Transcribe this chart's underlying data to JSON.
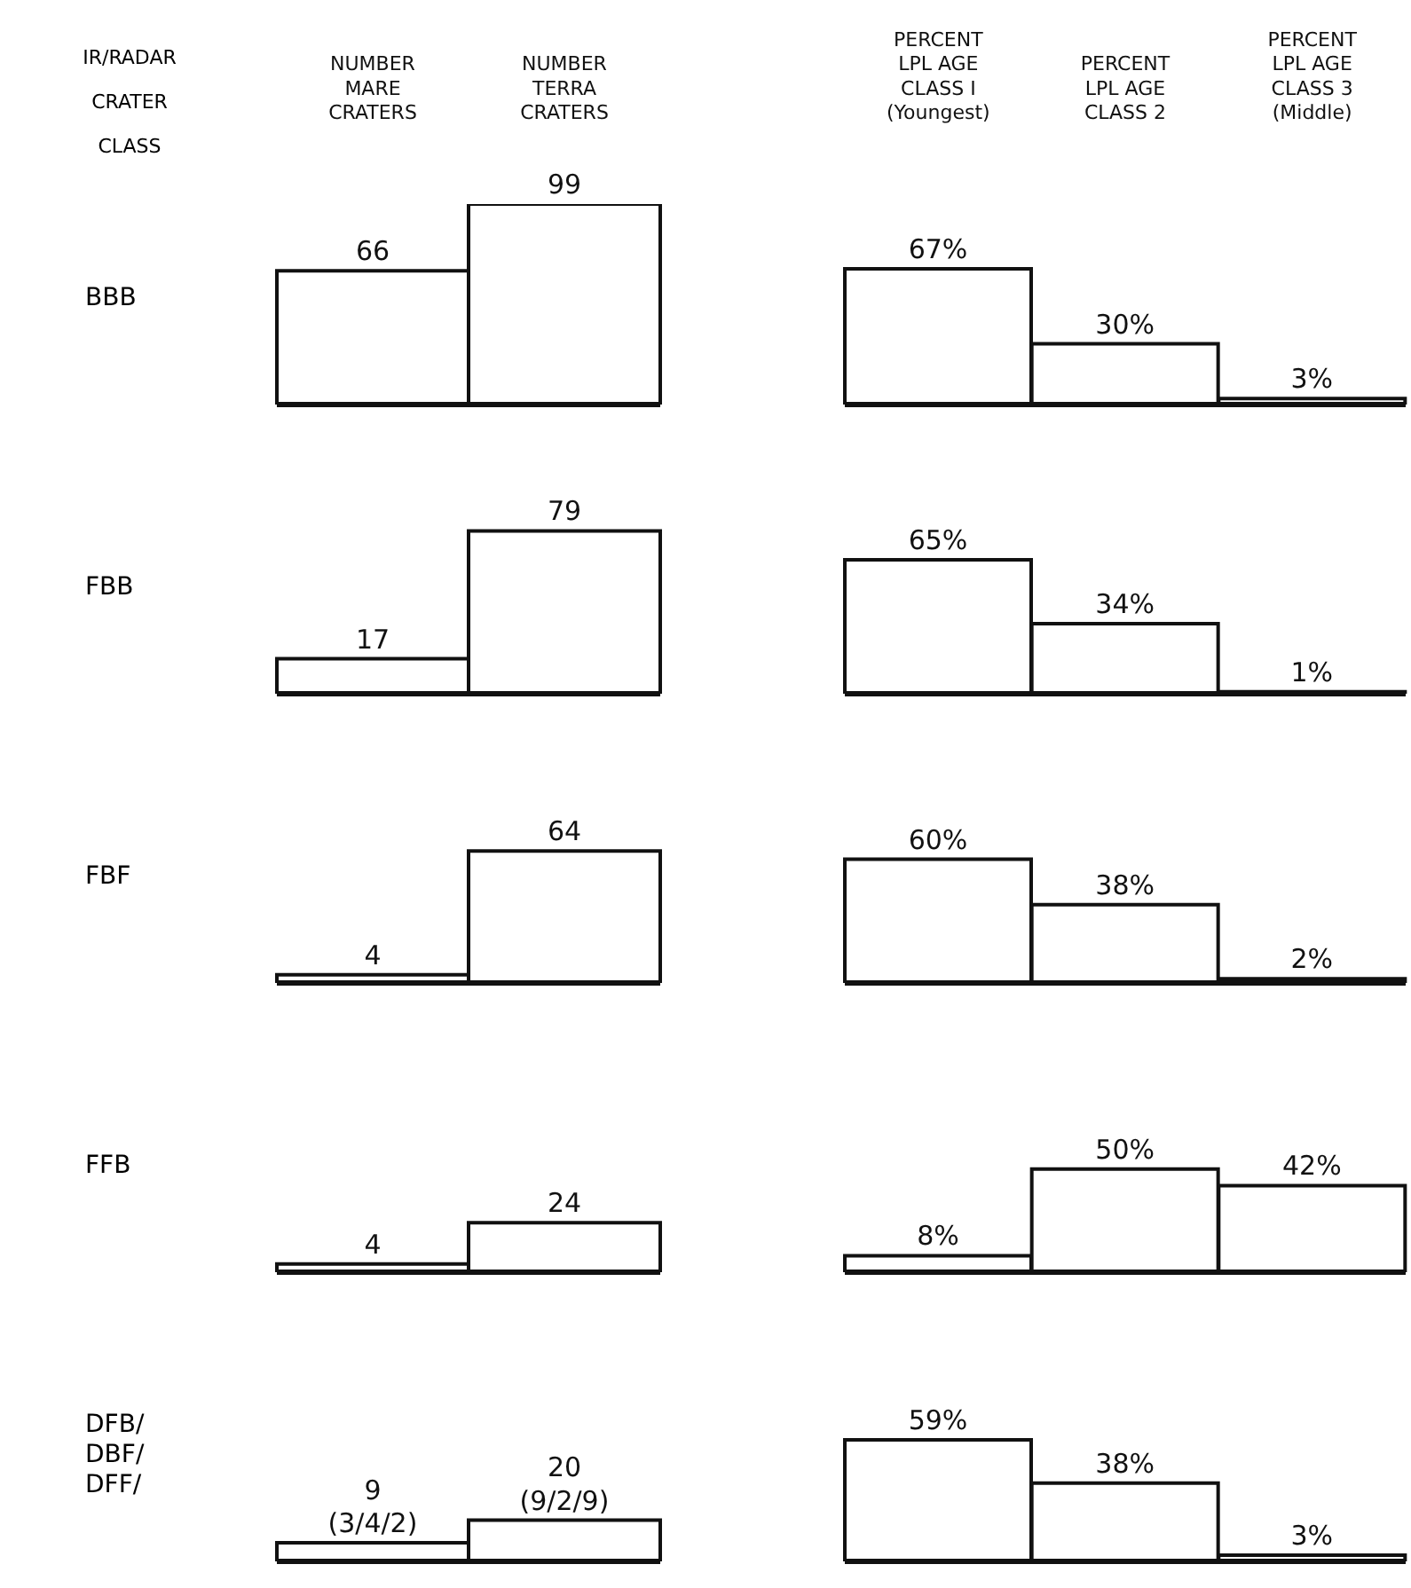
{
  "chart_data": [
    {
      "type": "bar",
      "annotations": [
        "IR/RADAR\nCRATER\nCLASS"
      ],
      "ylabel": "BBB",
      "categories": [
        "NUMBER\nMARE\nCRATERS",
        "NUMBER\nTERRA\nCRATERS"
      ],
      "values": [
        66,
        99
      ],
      "color": "#ffffff",
      "data_labels": true
    },
    {
      "type": "bar",
      "categories": [
        "PERCENT\nLPL AGE\nCLASS I\n(Youngest)",
        "PERCENT\nLPL AGE\nCLASS 2",
        "PERCENT\nLPL AGE\nCLASS 3\n(Middle)"
      ],
      "values": [
        67,
        30,
        3
      ],
      "value_labels": [
        "67%",
        "30%",
        "3%"
      ],
      "color": "#ffffff"
    },
    {
      "type": "bar",
      "ylabel": "FBB",
      "categories": [
        null,
        null
      ],
      "values": [
        17,
        79
      ],
      "color": "#ffffff",
      "data_labels": true
    },
    {
      "type": "bar",
      "categories": [
        null,
        null,
        null
      ],
      "values": [
        65,
        34,
        1
      ],
      "value_labels": [
        "65%",
        "34%",
        "1%"
      ],
      "color": "#ffffff"
    },
    {
      "type": "bar",
      "ylabel": "FBF",
      "categories": [
        null,
        null
      ],
      "values": [
        4,
        64
      ],
      "color": "#ffffff",
      "data_labels": true
    },
    {
      "type": "bar",
      "categories": [
        null,
        null,
        null
      ],
      "values": [
        60,
        38,
        2
      ],
      "value_labels": [
        "60%",
        "38%",
        "2%"
      ],
      "color": "#ffffff"
    },
    {
      "type": "bar",
      "ylabel": "FFB",
      "categories": [
        null,
        null
      ],
      "values": [
        4,
        24
      ],
      "color": "#ffffff",
      "data_labels": true
    },
    {
      "type": "bar",
      "categories": [
        null,
        null,
        null
      ],
      "values": [
        8,
        50,
        42
      ],
      "value_labels": [
        "8%",
        "50%",
        "42%"
      ],
      "color": "#ffffff"
    },
    {
      "type": "bar",
      "ylabel": "DFB/\nDBF/\nDFF/",
      "categories": [
        null,
        null
      ],
      "values": [
        9,
        20
      ],
      "value_labels": [
        "9\n(3/4/2)",
        "20\n(9/2/9)"
      ],
      "color": "#ffffff"
    },
    {
      "type": "bar",
      "categories": [
        null,
        null,
        null
      ],
      "values": [
        59,
        38,
        3
      ],
      "value_labels": [
        "59%",
        "38%",
        "3%"
      ],
      "color": "#ffffff"
    }
  ]
}
